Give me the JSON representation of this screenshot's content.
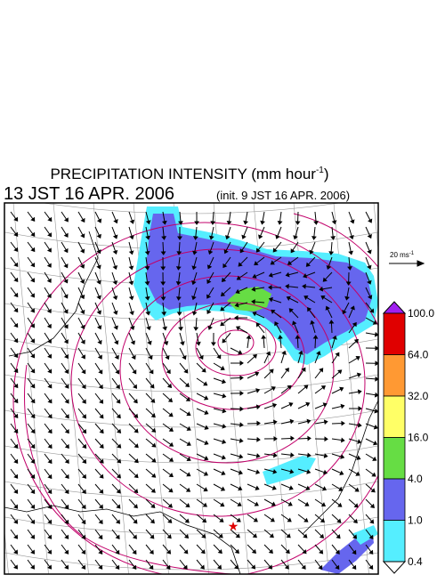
{
  "title": {
    "text": "PRECIPITATION INTENSITY (mm hour",
    "superscript": "-1",
    "close": ")"
  },
  "subtitle": {
    "time": "13 JST 16 APR. 2006",
    "init": "(init. 9 JST 16 APR. 2006)"
  },
  "wind_legend": {
    "text": "20 ms",
    "superscript": "-1"
  },
  "colorbar": {
    "labels": [
      "100.0",
      "64.0",
      "32.0",
      "16.0",
      "4.0",
      "1.0",
      "0.4"
    ],
    "colors": [
      "#a020f0",
      "#e00000",
      "#ff9933",
      "#ffff66",
      "#66dd44",
      "#6666ee",
      "#55eeff",
      "#ffffff"
    ]
  }
}
